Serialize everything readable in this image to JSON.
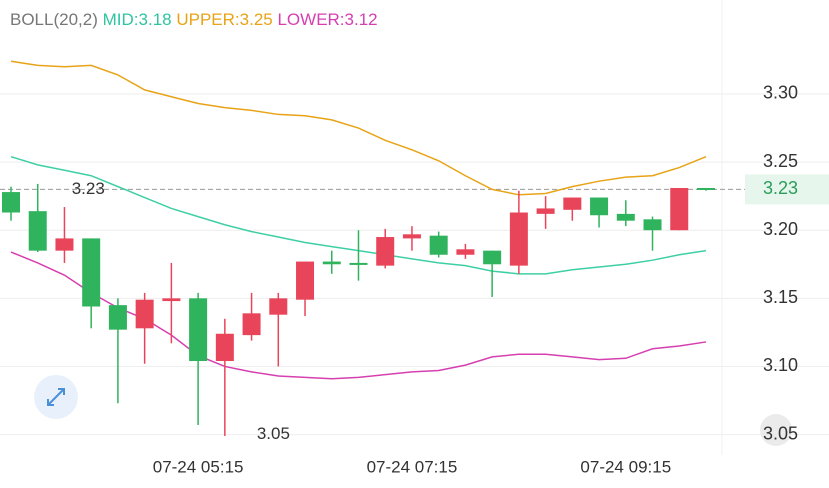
{
  "chart_data": {
    "type": "candlestick",
    "indicator": {
      "name": "BOLL(20,2)",
      "mid_label": "MID:",
      "mid": 3.18,
      "upper_label": "UPPER:",
      "upper": 3.25,
      "lower_label": "LOWER:",
      "lower": 3.12
    },
    "categories": [
      null,
      null,
      null,
      null,
      null,
      null,
      null,
      "07-24 05:15",
      null,
      null,
      null,
      null,
      null,
      null,
      null,
      "07-24 07:15",
      null,
      null,
      null,
      null,
      null,
      null,
      null,
      "07-24 09:15",
      null,
      null,
      null
    ],
    "open": [
      3.228,
      3.214,
      3.185,
      3.194,
      3.145,
      3.128,
      3.148,
      3.15,
      3.104,
      3.123,
      3.138,
      3.149,
      3.177,
      3.176,
      3.174,
      3.194,
      3.196,
      3.182,
      3.185,
      3.174,
      3.212,
      3.215,
      3.224,
      3.212,
      3.208,
      3.2,
      3.231
    ],
    "close": [
      3.213,
      3.185,
      3.194,
      3.144,
      3.127,
      3.149,
      3.15,
      3.104,
      3.124,
      3.139,
      3.15,
      3.177,
      3.175,
      3.175,
      3.195,
      3.197,
      3.182,
      3.186,
      3.175,
      3.213,
      3.216,
      3.224,
      3.211,
      3.207,
      3.2,
      3.231,
      3.23
    ],
    "high": [
      3.232,
      3.234,
      3.217,
      3.194,
      3.15,
      3.154,
      3.176,
      3.154,
      3.135,
      3.154,
      3.154,
      3.177,
      3.185,
      3.2,
      3.201,
      3.203,
      3.199,
      3.19,
      3.185,
      3.229,
      3.225,
      3.224,
      3.224,
      3.222,
      3.21,
      3.231,
      3.231
    ],
    "low": [
      3.207,
      3.184,
      3.176,
      3.128,
      3.073,
      3.102,
      3.117,
      3.057,
      3.049,
      3.119,
      3.1,
      3.137,
      3.168,
      3.163,
      3.172,
      3.185,
      3.18,
      3.179,
      3.151,
      3.168,
      3.201,
      3.207,
      3.202,
      3.203,
      3.185,
      3.2,
      3.229
    ],
    "up_color": "#e8455a",
    "down_color": "#2fb35c",
    "bands": [
      {
        "name": "UPPER",
        "color": "#e8a317",
        "values": [
          3.324,
          3.321,
          3.32,
          3.321,
          3.314,
          3.303,
          3.298,
          3.293,
          3.29,
          3.288,
          3.285,
          3.284,
          3.281,
          3.275,
          3.266,
          3.259,
          3.251,
          3.24,
          3.23,
          3.226,
          3.227,
          3.232,
          3.236,
          3.239,
          3.24,
          3.246,
          3.254
        ]
      },
      {
        "name": "MID",
        "color": "#3ecfa5",
        "values": [
          3.254,
          3.248,
          3.244,
          3.24,
          3.232,
          3.224,
          3.216,
          3.21,
          3.204,
          3.199,
          3.195,
          3.191,
          3.188,
          3.185,
          3.182,
          3.179,
          3.176,
          3.174,
          3.17,
          3.168,
          3.168,
          3.171,
          3.173,
          3.175,
          3.178,
          3.182,
          3.185
        ]
      },
      {
        "name": "LOWER",
        "color": "#d63fb0",
        "values": [
          3.184,
          3.176,
          3.167,
          3.154,
          3.143,
          3.135,
          3.123,
          3.108,
          3.1,
          3.096,
          3.093,
          3.092,
          3.091,
          3.092,
          3.094,
          3.096,
          3.097,
          3.101,
          3.107,
          3.109,
          3.109,
          3.107,
          3.105,
          3.106,
          3.113,
          3.115,
          3.118
        ]
      }
    ],
    "last_price": 3.23,
    "max_label": 3.23,
    "min_label": 3.05,
    "ylim": [
      3.035,
      3.369
    ],
    "yticks": [
      {
        "value": 3.3,
        "label": "3.30"
      },
      3.25,
      {
        "value": 3.2,
        "label": "3.20"
      },
      3.15,
      {
        "value": 3.1,
        "label": "3.10"
      },
      3.05
    ],
    "grid": true
  }
}
